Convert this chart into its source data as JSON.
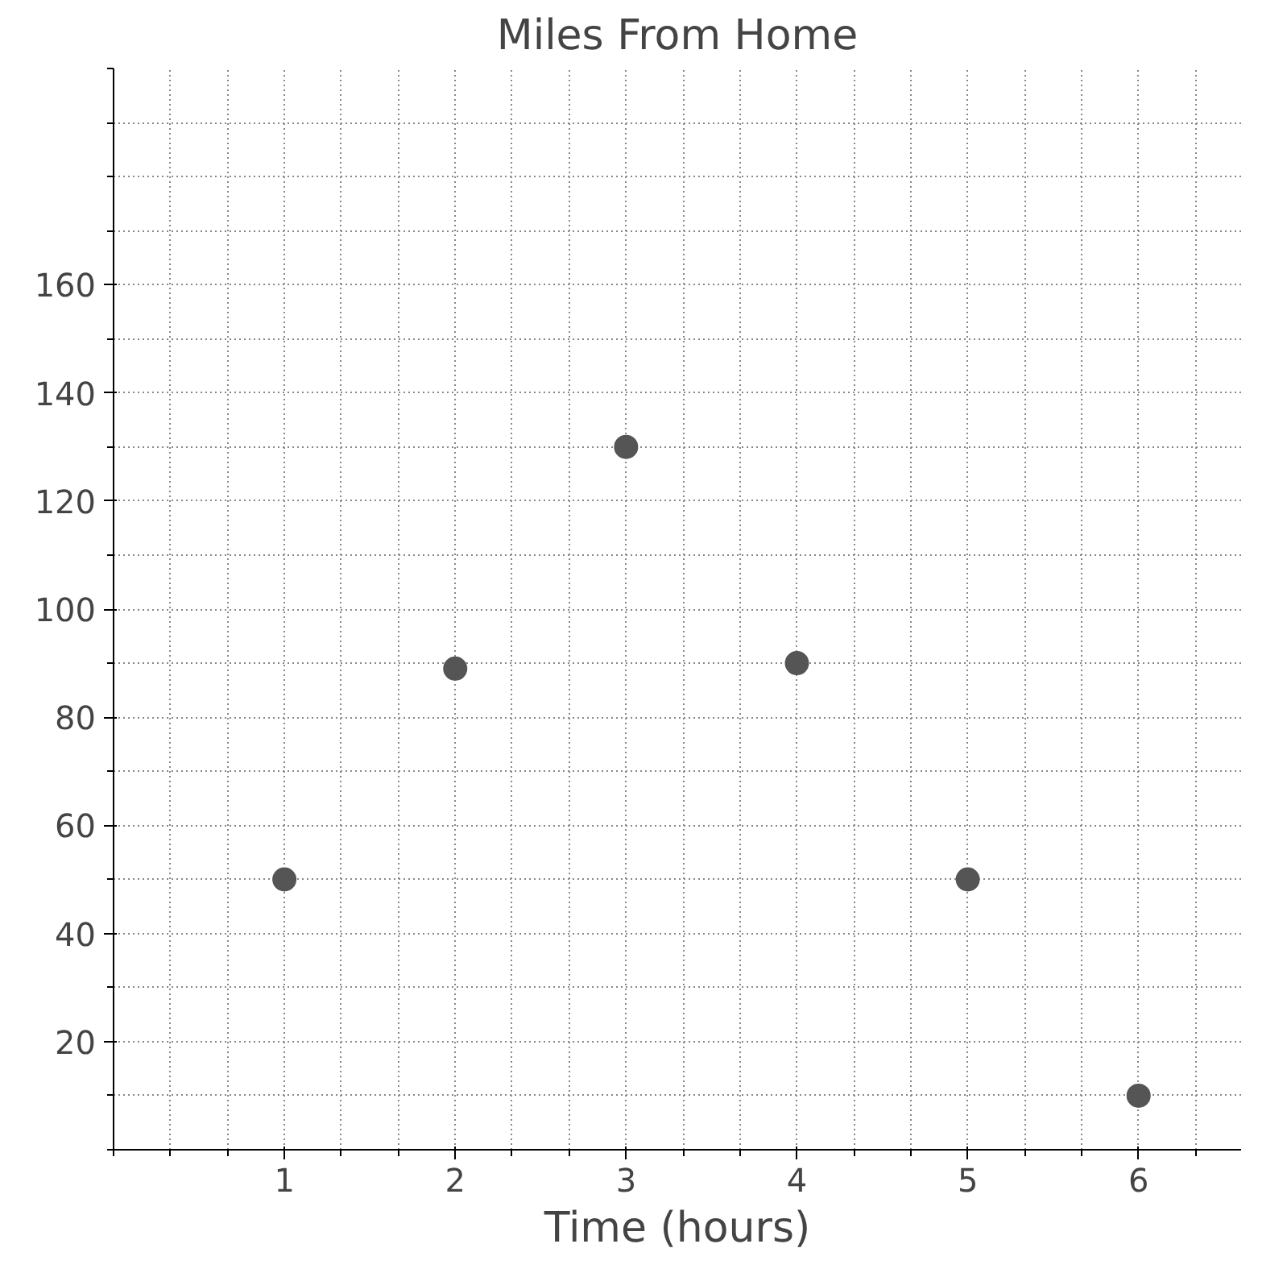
{
  "chart_data": {
    "type": "scatter",
    "title": "Miles From Home",
    "xlabel": "Time (hours)",
    "x": [
      1,
      2,
      3,
      4,
      5,
      6
    ],
    "series": [
      {
        "color": "#555555",
        "values": [
          50,
          89,
          130,
          90,
          50,
          10
        ]
      }
    ],
    "xlim": [
      0,
      6.6
    ],
    "ylim": [
      0,
      200
    ],
    "xticks": [
      1,
      2,
      3,
      4,
      5,
      6
    ],
    "yticks": [
      20,
      40,
      60,
      80,
      100,
      120,
      140,
      160
    ],
    "grid": true,
    "marker": "circle"
  }
}
